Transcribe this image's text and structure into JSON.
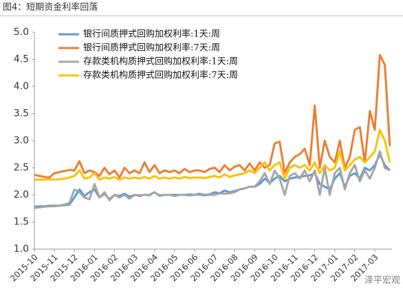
{
  "chart_data": {
    "type": "line",
    "title": "图4：短期资金利率回落",
    "annotations": [
      "泽平宏观"
    ],
    "legend": "upper left",
    "categories": [
      "2015-10",
      null,
      null,
      null,
      "2015-11",
      null,
      null,
      null,
      "2015-12",
      null,
      null,
      null,
      "2016-01",
      null,
      null,
      null,
      "2016-02",
      null,
      null,
      null,
      "2016-03",
      null,
      null,
      null,
      "2016-04",
      null,
      null,
      null,
      "2016-05",
      null,
      null,
      null,
      "2016-06",
      null,
      null,
      null,
      "2016-07",
      null,
      null,
      null,
      "2016-08",
      null,
      null,
      null,
      "2016-09",
      null,
      null,
      null,
      "2016-10",
      null,
      null,
      null,
      "2016-11",
      null,
      null,
      null,
      "2016-12",
      null,
      null,
      null,
      "2017-01",
      null,
      null,
      null,
      "2017-02",
      null,
      null,
      null,
      "2017-03",
      null,
      null,
      null
    ],
    "ylim": [
      1,
      5
    ],
    "yticks": [
      {
        "value": 1,
        "label": "1.0"
      },
      {
        "value": 1.5,
        "label": "1.5"
      },
      {
        "value": 2,
        "label": "2.0"
      },
      {
        "value": 2.5,
        "label": "2.5"
      },
      {
        "value": 3,
        "label": "3.0"
      },
      {
        "value": 3.5,
        "label": "3.5"
      },
      {
        "value": 4,
        "label": "4.0"
      },
      {
        "value": 4.5,
        "label": "4.5"
      },
      {
        "value": 5,
        "label": "5.0"
      }
    ],
    "series": [
      {
        "name": "银行间质押式回购加权利率:1天:周",
        "color": "#5b9bd5",
        "values": [
          1.78,
          1.79,
          1.79,
          1.8,
          1.8,
          1.8,
          1.81,
          1.82,
          1.95,
          2.1,
          1.98,
          2.05,
          2.1,
          1.95,
          2.02,
          1.92,
          2.0,
          1.98,
          2.02,
          1.97,
          2.0,
          1.99,
          2.0,
          2.0,
          2.05,
          1.99,
          2.0,
          2.0,
          2.0,
          2.0,
          2.0,
          2.01,
          2.0,
          2.02,
          2.0,
          2.01,
          2.05,
          2.03,
          2.08,
          2.05,
          2.07,
          2.1,
          2.12,
          2.15,
          2.15,
          2.2,
          2.3,
          2.22,
          2.3,
          2.35,
          2.25,
          2.3,
          2.32,
          2.33,
          2.35,
          2.36,
          2.4,
          2.2,
          2.15,
          2.1,
          2.3,
          2.4,
          2.15,
          2.35,
          2.4,
          2.3,
          2.5,
          2.45,
          2.55,
          2.75,
          2.55,
          2.45
        ]
      },
      {
        "name": "银行间质押式回购加权利率:7天:周",
        "color": "#ed7d31",
        "values": [
          2.37,
          2.35,
          2.33,
          2.32,
          2.4,
          2.42,
          2.44,
          2.46,
          2.45,
          2.62,
          2.4,
          2.45,
          2.42,
          2.35,
          2.5,
          2.38,
          2.45,
          2.32,
          2.5,
          2.4,
          2.45,
          2.4,
          2.6,
          2.42,
          2.55,
          2.4,
          2.45,
          2.42,
          2.45,
          2.4,
          2.48,
          2.42,
          2.45,
          2.45,
          2.42,
          2.48,
          2.5,
          2.42,
          2.55,
          2.45,
          2.52,
          2.55,
          2.45,
          2.58,
          2.45,
          2.6,
          2.5,
          2.55,
          2.95,
          2.98,
          2.4,
          2.6,
          2.7,
          2.75,
          2.85,
          2.55,
          3.65,
          2.5,
          3.0,
          2.7,
          2.6,
          3.0,
          2.5,
          2.7,
          3.2,
          3.25,
          2.6,
          3.55,
          3.2,
          4.58,
          4.4,
          2.9
        ]
      },
      {
        "name": "存款类机构质押式回购加权利率:1天:周",
        "color": "#a5a5a5",
        "values": [
          1.76,
          1.77,
          1.78,
          1.79,
          1.79,
          1.8,
          1.82,
          1.85,
          2.1,
          2.05,
          1.95,
          1.92,
          2.2,
          1.95,
          2.05,
          1.9,
          2.0,
          1.95,
          2.0,
          1.93,
          2.0,
          1.98,
          2.0,
          1.99,
          2.05,
          1.98,
          2.0,
          2.0,
          1.98,
          2.0,
          2.0,
          1.99,
          2.0,
          2.0,
          1.99,
          2.0,
          2.0,
          2.03,
          2.02,
          2.03,
          2.05,
          2.1,
          2.12,
          2.15,
          2.15,
          2.25,
          2.4,
          2.2,
          2.45,
          2.3,
          2.0,
          2.35,
          2.4,
          2.3,
          2.45,
          2.25,
          2.45,
          2.0,
          2.5,
          2.0,
          2.4,
          2.5,
          2.1,
          2.4,
          2.55,
          2.25,
          2.45,
          2.3,
          2.5,
          2.8,
          2.5,
          2.45
        ]
      },
      {
        "name": "存款类机构质押式回购加权利率:7天:周",
        "color": "#ffc000",
        "values": [
          2.28,
          2.28,
          2.28,
          2.29,
          2.28,
          2.29,
          2.3,
          2.32,
          2.35,
          2.45,
          2.3,
          2.32,
          2.4,
          2.28,
          2.32,
          2.3,
          2.33,
          2.28,
          2.32,
          2.3,
          2.32,
          2.3,
          2.33,
          2.3,
          2.35,
          2.3,
          2.32,
          2.3,
          2.32,
          2.3,
          2.33,
          2.31,
          2.32,
          2.32,
          2.31,
          2.33,
          2.35,
          2.32,
          2.38,
          2.33,
          2.36,
          2.38,
          2.4,
          2.45,
          2.4,
          2.5,
          2.6,
          2.45,
          2.55,
          2.6,
          2.3,
          2.5,
          2.55,
          2.5,
          2.55,
          2.45,
          2.6,
          2.4,
          2.55,
          2.45,
          2.5,
          2.8,
          2.45,
          2.55,
          2.65,
          2.7,
          2.6,
          2.7,
          2.8,
          3.2,
          3.0,
          2.6
        ]
      }
    ]
  }
}
